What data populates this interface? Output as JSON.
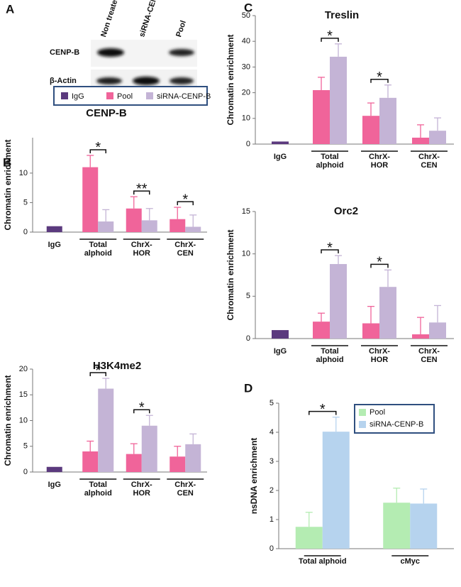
{
  "panel_labels": [
    "A",
    "B",
    "C",
    "D"
  ],
  "blot": {
    "columns": [
      "Non treated",
      "siRNA-CENP-B",
      "Pool"
    ],
    "rows": [
      "CENP-B",
      "β-Actin"
    ]
  },
  "chart_data": [
    {
      "type": "bar",
      "title": "CENP-B",
      "ylabel": "Chromatin enrichment",
      "categories": [
        "IgG",
        "Total alphoid",
        "ChrX-HOR",
        "ChrX-CEN"
      ],
      "series": [
        {
          "name": "IgG",
          "color": "#5b3a7e",
          "values": [
            1,
            null,
            null,
            null
          ]
        },
        {
          "name": "Pool",
          "color": "#f0649a",
          "values": [
            null,
            11,
            4,
            2.2
          ],
          "errors": [
            null,
            2,
            2,
            2
          ]
        },
        {
          "name": "siRNA-CENP-B",
          "color": "#c4b4d6",
          "values": [
            null,
            1.8,
            2,
            0.9
          ],
          "errors": [
            null,
            2,
            2,
            2
          ]
        }
      ],
      "ylim": [
        0,
        16
      ],
      "yticks": [
        0,
        5,
        10
      ],
      "annotations": [
        null,
        "*",
        "**",
        "*"
      ],
      "legend": "top"
    },
    {
      "type": "bar",
      "title": "H3K4me2",
      "ylabel": "Chromatin enrichment",
      "categories": [
        "IgG",
        "Total alphoid",
        "ChrX-HOR",
        "ChrX-CEN"
      ],
      "series": [
        {
          "color": "#5b3a7e",
          "values": [
            1,
            null,
            null,
            null
          ]
        },
        {
          "color": "#f0649a",
          "values": [
            null,
            4,
            3.5,
            3
          ],
          "errors": [
            null,
            2,
            2,
            2
          ]
        },
        {
          "color": "#c4b4d6",
          "values": [
            null,
            16.2,
            9,
            5.4
          ],
          "errors": [
            null,
            2,
            2,
            2
          ]
        }
      ],
      "ylim": [
        0,
        20
      ],
      "yticks": [
        0,
        5,
        10,
        15,
        20
      ],
      "annotations": [
        null,
        "*",
        "*",
        null
      ]
    },
    {
      "type": "bar",
      "title": "Treslin",
      "ylabel": "Chromatin enrichment",
      "categories": [
        "IgG",
        "Total alphoid",
        "ChrX-HOR",
        "ChrX-CEN"
      ],
      "series": [
        {
          "color": "#5b3a7e",
          "values": [
            1,
            null,
            null,
            null
          ]
        },
        {
          "color": "#f0649a",
          "values": [
            null,
            21,
            11,
            2.5
          ],
          "errors": [
            null,
            5,
            5,
            5
          ]
        },
        {
          "color": "#c4b4d6",
          "values": [
            null,
            34,
            18,
            5.2
          ],
          "errors": [
            null,
            5,
            5,
            5
          ]
        }
      ],
      "ylim": [
        0,
        50
      ],
      "yticks": [
        0,
        10,
        20,
        30,
        40,
        50
      ],
      "annotations": [
        null,
        "*",
        "*",
        null
      ]
    },
    {
      "type": "bar",
      "title": "Orc2",
      "ylabel": "Chromatin enrichment",
      "categories": [
        "IgG",
        "Total alphoid",
        "ChrX-HOR",
        "ChrX-CEN"
      ],
      "series": [
        {
          "color": "#5b3a7e",
          "values": [
            1,
            null,
            null,
            null
          ]
        },
        {
          "color": "#f0649a",
          "values": [
            null,
            2,
            1.8,
            0.5
          ],
          "errors": [
            null,
            1,
            2,
            2
          ]
        },
        {
          "color": "#c4b4d6",
          "values": [
            null,
            8.8,
            6.1,
            1.9
          ],
          "errors": [
            null,
            1,
            2,
            2
          ]
        }
      ],
      "ylim": [
        0,
        15
      ],
      "yticks": [
        0,
        5,
        10,
        15
      ],
      "annotations": [
        null,
        "*",
        "*",
        null
      ]
    },
    {
      "type": "bar",
      "ylabel": "nsDNA enrichment",
      "categories": [
        "Total alphoid",
        "cMyc"
      ],
      "series": [
        {
          "name": "Pool",
          "color": "#b4ecb2",
          "values": [
            0.75,
            1.58
          ],
          "errors": [
            0.5,
            0.5
          ]
        },
        {
          "name": "siRNA-CENP-B",
          "color": "#b6d3ee",
          "values": [
            4.02,
            1.55
          ],
          "errors": [
            0.5,
            0.5
          ]
        }
      ],
      "ylim": [
        0,
        5
      ],
      "yticks": [
        0,
        1,
        2,
        3,
        4,
        5
      ],
      "annotations": [
        "*",
        null
      ],
      "legend": "upper right"
    }
  ]
}
